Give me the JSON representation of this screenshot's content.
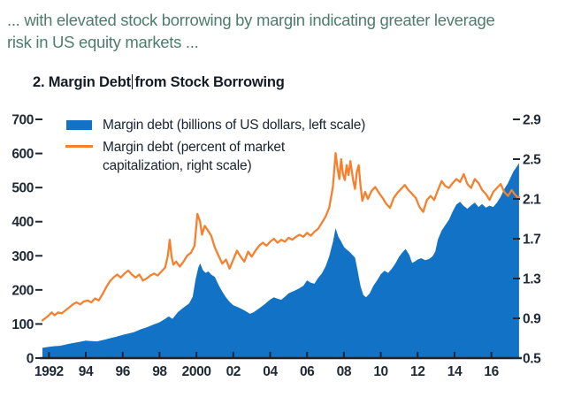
{
  "page": {
    "header_line1": "... with elevated stock borrowing by margin indicating greater leverage",
    "header_line2": "risk in US equity markets ...",
    "title_part1": "2. Margin Debt",
    "title_part2": "from Stock Borrowing"
  },
  "legend": {
    "item1": "Margin debt (billions of US dollars, left scale)",
    "item2_line1": "Margin debt (percent of market",
    "item2_line2": "capitalization, right scale)"
  },
  "colors": {
    "header_text": "#4e7c6d",
    "title_text": "#151c26",
    "axis_text": "#1f2935",
    "axis_line": "#1b2430",
    "area_blue": "#1272c6",
    "line_orange": "#f5812f"
  },
  "chart_data": {
    "type": "area",
    "title": "2. Margin Debt from Stock Borrowing",
    "x_range": [
      1991.6,
      2017.6
    ],
    "x_ticks": [
      1992,
      1994,
      1996,
      1998,
      2000,
      2002,
      2004,
      2006,
      2008,
      2010,
      2012,
      2014,
      2016
    ],
    "x_tick_labels": [
      "1992",
      "94",
      "96",
      "98",
      "2000",
      "02",
      "04",
      "06",
      "08",
      "10",
      "12",
      "14",
      "16"
    ],
    "grid": false,
    "legend_position": "top-left",
    "left_axis": {
      "range": [
        0,
        700
      ],
      "ticks": [
        0,
        100,
        200,
        300,
        400,
        500,
        600,
        700
      ],
      "tick_labels": [
        "0",
        "100",
        "200",
        "300",
        "400",
        "500",
        "600",
        "700"
      ]
    },
    "right_axis": {
      "range": [
        0.5,
        2.9
      ],
      "ticks": [
        0.5,
        0.9,
        1.3,
        1.7,
        2.1,
        2.5,
        2.9
      ],
      "tick_labels": [
        "0.5",
        "0.9",
        "1.3",
        "1.7",
        "2.1",
        "2.5",
        "2.9"
      ]
    },
    "series": [
      {
        "name": "Margin debt (billions of US dollars, left scale)",
        "type": "area",
        "axis": "left",
        "color": "#1272c6",
        "points": [
          [
            1991.65,
            30
          ],
          [
            1992,
            33
          ],
          [
            1992.3,
            35
          ],
          [
            1992.6,
            36
          ],
          [
            1993,
            41
          ],
          [
            1993.3,
            44
          ],
          [
            1993.6,
            47
          ],
          [
            1994,
            51
          ],
          [
            1994.3,
            50
          ],
          [
            1994.6,
            49
          ],
          [
            1995,
            54
          ],
          [
            1995.3,
            58
          ],
          [
            1995.6,
            62
          ],
          [
            1996,
            68
          ],
          [
            1996.3,
            72
          ],
          [
            1996.6,
            76
          ],
          [
            1997,
            85
          ],
          [
            1997.3,
            90
          ],
          [
            1997.6,
            97
          ],
          [
            1998,
            105
          ],
          [
            1998.3,
            115
          ],
          [
            1998.5,
            122
          ],
          [
            1998.7,
            115
          ],
          [
            1999,
            135
          ],
          [
            1999.3,
            148
          ],
          [
            1999.6,
            160
          ],
          [
            1999.8,
            180
          ],
          [
            1999.95,
            230
          ],
          [
            2000.1,
            265
          ],
          [
            2000.2,
            278
          ],
          [
            2000.35,
            258
          ],
          [
            2000.5,
            250
          ],
          [
            2000.65,
            254
          ],
          [
            2000.8,
            245
          ],
          [
            2001,
            238
          ],
          [
            2001.2,
            215
          ],
          [
            2001.4,
            195
          ],
          [
            2001.6,
            178
          ],
          [
            2001.8,
            165
          ],
          [
            2002,
            155
          ],
          [
            2002.3,
            148
          ],
          [
            2002.6,
            140
          ],
          [
            2002.9,
            130
          ],
          [
            2003.1,
            134
          ],
          [
            2003.4,
            146
          ],
          [
            2003.7,
            158
          ],
          [
            2004,
            172
          ],
          [
            2004.2,
            178
          ],
          [
            2004.4,
            174
          ],
          [
            2004.6,
            171
          ],
          [
            2004.8,
            180
          ],
          [
            2005,
            190
          ],
          [
            2005.3,
            197
          ],
          [
            2005.6,
            205
          ],
          [
            2005.8,
            212
          ],
          [
            2006,
            228
          ],
          [
            2006.2,
            221
          ],
          [
            2006.4,
            218
          ],
          [
            2006.6,
            235
          ],
          [
            2006.8,
            248
          ],
          [
            2007,
            268
          ],
          [
            2007.2,
            298
          ],
          [
            2007.4,
            340
          ],
          [
            2007.55,
            381
          ],
          [
            2007.7,
            356
          ],
          [
            2007.85,
            342
          ],
          [
            2008,
            326
          ],
          [
            2008.15,
            318
          ],
          [
            2008.3,
            312
          ],
          [
            2008.45,
            303
          ],
          [
            2008.6,
            295
          ],
          [
            2008.75,
            255
          ],
          [
            2008.9,
            212
          ],
          [
            2009.05,
            185
          ],
          [
            2009.2,
            178
          ],
          [
            2009.4,
            190
          ],
          [
            2009.6,
            212
          ],
          [
            2009.8,
            228
          ],
          [
            2010,
            246
          ],
          [
            2010.2,
            256
          ],
          [
            2010.4,
            250
          ],
          [
            2010.6,
            262
          ],
          [
            2010.8,
            278
          ],
          [
            2011,
            298
          ],
          [
            2011.2,
            312
          ],
          [
            2011.35,
            320
          ],
          [
            2011.55,
            302
          ],
          [
            2011.7,
            279
          ],
          [
            2011.85,
            283
          ],
          [
            2012,
            289
          ],
          [
            2012.2,
            293
          ],
          [
            2012.4,
            287
          ],
          [
            2012.6,
            290
          ],
          [
            2012.8,
            298
          ],
          [
            2012.95,
            312
          ],
          [
            2013.1,
            348
          ],
          [
            2013.3,
            374
          ],
          [
            2013.5,
            390
          ],
          [
            2013.7,
            406
          ],
          [
            2013.9,
            430
          ],
          [
            2014.1,
            450
          ],
          [
            2014.3,
            458
          ],
          [
            2014.5,
            446
          ],
          [
            2014.7,
            438
          ],
          [
            2014.9,
            448
          ],
          [
            2015.1,
            456
          ],
          [
            2015.3,
            443
          ],
          [
            2015.5,
            452
          ],
          [
            2015.7,
            441
          ],
          [
            2015.9,
            447
          ],
          [
            2016.1,
            443
          ],
          [
            2016.3,
            456
          ],
          [
            2016.5,
            473
          ],
          [
            2016.7,
            496
          ],
          [
            2016.9,
            513
          ],
          [
            2017.05,
            531
          ],
          [
            2017.2,
            548
          ],
          [
            2017.35,
            559
          ],
          [
            2017.5,
            572
          ]
        ]
      },
      {
        "name": "Margin debt (percent of market capitalization, right scale)",
        "type": "line",
        "axis": "right",
        "color": "#f5812f",
        "points": [
          [
            1991.65,
            0.88
          ],
          [
            1991.8,
            0.9
          ],
          [
            1992,
            0.93
          ],
          [
            1992.15,
            0.96
          ],
          [
            1992.3,
            0.93
          ],
          [
            1992.5,
            0.96
          ],
          [
            1992.7,
            0.95
          ],
          [
            1992.9,
            0.98
          ],
          [
            1993.1,
            1.01
          ],
          [
            1993.3,
            1.04
          ],
          [
            1993.5,
            1.06
          ],
          [
            1993.7,
            1.04
          ],
          [
            1993.9,
            1.07
          ],
          [
            1994.1,
            1.08
          ],
          [
            1994.3,
            1.06
          ],
          [
            1994.5,
            1.1
          ],
          [
            1994.7,
            1.08
          ],
          [
            1994.9,
            1.14
          ],
          [
            1995.1,
            1.21
          ],
          [
            1995.3,
            1.27
          ],
          [
            1995.5,
            1.31
          ],
          [
            1995.7,
            1.34
          ],
          [
            1995.9,
            1.31
          ],
          [
            1996.1,
            1.35
          ],
          [
            1996.3,
            1.38
          ],
          [
            1996.5,
            1.34
          ],
          [
            1996.7,
            1.31
          ],
          [
            1996.9,
            1.34
          ],
          [
            1997.1,
            1.28
          ],
          [
            1997.3,
            1.3
          ],
          [
            1997.5,
            1.33
          ],
          [
            1997.7,
            1.35
          ],
          [
            1997.9,
            1.33
          ],
          [
            1998.1,
            1.37
          ],
          [
            1998.3,
            1.41
          ],
          [
            1998.45,
            1.53
          ],
          [
            1998.55,
            1.69
          ],
          [
            1998.65,
            1.52
          ],
          [
            1998.75,
            1.44
          ],
          [
            1998.9,
            1.47
          ],
          [
            1999.1,
            1.42
          ],
          [
            1999.3,
            1.47
          ],
          [
            1999.5,
            1.53
          ],
          [
            1999.7,
            1.56
          ],
          [
            1999.9,
            1.63
          ],
          [
            2000.05,
            1.95
          ],
          [
            2000.2,
            1.87
          ],
          [
            2000.3,
            1.74
          ],
          [
            2000.45,
            1.83
          ],
          [
            2000.6,
            1.79
          ],
          [
            2000.8,
            1.73
          ],
          [
            2001,
            1.61
          ],
          [
            2001.2,
            1.53
          ],
          [
            2001.4,
            1.45
          ],
          [
            2001.6,
            1.49
          ],
          [
            2001.8,
            1.4
          ],
          [
            2002,
            1.49
          ],
          [
            2002.2,
            1.58
          ],
          [
            2002.4,
            1.52
          ],
          [
            2002.6,
            1.47
          ],
          [
            2002.8,
            1.57
          ],
          [
            2003,
            1.52
          ],
          [
            2003.2,
            1.58
          ],
          [
            2003.4,
            1.63
          ],
          [
            2003.6,
            1.66
          ],
          [
            2003.8,
            1.63
          ],
          [
            2004,
            1.67
          ],
          [
            2004.2,
            1.7
          ],
          [
            2004.4,
            1.66
          ],
          [
            2004.6,
            1.69
          ],
          [
            2004.8,
            1.67
          ],
          [
            2005,
            1.71
          ],
          [
            2005.2,
            1.69
          ],
          [
            2005.4,
            1.72
          ],
          [
            2005.6,
            1.74
          ],
          [
            2005.8,
            1.72
          ],
          [
            2006,
            1.76
          ],
          [
            2006.2,
            1.73
          ],
          [
            2006.4,
            1.77
          ],
          [
            2006.6,
            1.8
          ],
          [
            2006.8,
            1.86
          ],
          [
            2007,
            1.92
          ],
          [
            2007.2,
            2.01
          ],
          [
            2007.4,
            2.22
          ],
          [
            2007.55,
            2.56
          ],
          [
            2007.65,
            2.41
          ],
          [
            2007.75,
            2.3
          ],
          [
            2007.85,
            2.5
          ],
          [
            2007.95,
            2.35
          ],
          [
            2008.05,
            2.29
          ],
          [
            2008.15,
            2.44
          ],
          [
            2008.25,
            2.34
          ],
          [
            2008.35,
            2.48
          ],
          [
            2008.5,
            2.29
          ],
          [
            2008.6,
            2.2
          ],
          [
            2008.7,
            2.37
          ],
          [
            2008.8,
            2.44
          ],
          [
            2008.9,
            2.24
          ],
          [
            2009,
            2.08
          ],
          [
            2009.15,
            2.17
          ],
          [
            2009.3,
            2.1
          ],
          [
            2009.5,
            2.18
          ],
          [
            2009.7,
            2.22
          ],
          [
            2009.9,
            2.16
          ],
          [
            2010.1,
            2.11
          ],
          [
            2010.3,
            2.05
          ],
          [
            2010.5,
            2.01
          ],
          [
            2010.7,
            2.11
          ],
          [
            2010.9,
            2.16
          ],
          [
            2011.1,
            2.2
          ],
          [
            2011.3,
            2.24
          ],
          [
            2011.5,
            2.19
          ],
          [
            2011.7,
            2.15
          ],
          [
            2011.9,
            2.11
          ],
          [
            2012.1,
            2.02
          ],
          [
            2012.3,
            1.97
          ],
          [
            2012.5,
            2.09
          ],
          [
            2012.7,
            2.13
          ],
          [
            2012.9,
            2.09
          ],
          [
            2013.1,
            2.19
          ],
          [
            2013.3,
            2.28
          ],
          [
            2013.5,
            2.23
          ],
          [
            2013.7,
            2.21
          ],
          [
            2013.9,
            2.26
          ],
          [
            2014.1,
            2.3
          ],
          [
            2014.3,
            2.27
          ],
          [
            2014.5,
            2.35
          ],
          [
            2014.7,
            2.25
          ],
          [
            2014.9,
            2.21
          ],
          [
            2015.1,
            2.3
          ],
          [
            2015.3,
            2.26
          ],
          [
            2015.5,
            2.19
          ],
          [
            2015.7,
            2.15
          ],
          [
            2015.9,
            2.09
          ],
          [
            2016.1,
            2.17
          ],
          [
            2016.3,
            2.21
          ],
          [
            2016.5,
            2.25
          ],
          [
            2016.7,
            2.17
          ],
          [
            2016.9,
            2.13
          ],
          [
            2017.1,
            2.19
          ],
          [
            2017.25,
            2.15
          ],
          [
            2017.4,
            2.12
          ],
          [
            2017.5,
            2.12
          ]
        ]
      }
    ]
  }
}
